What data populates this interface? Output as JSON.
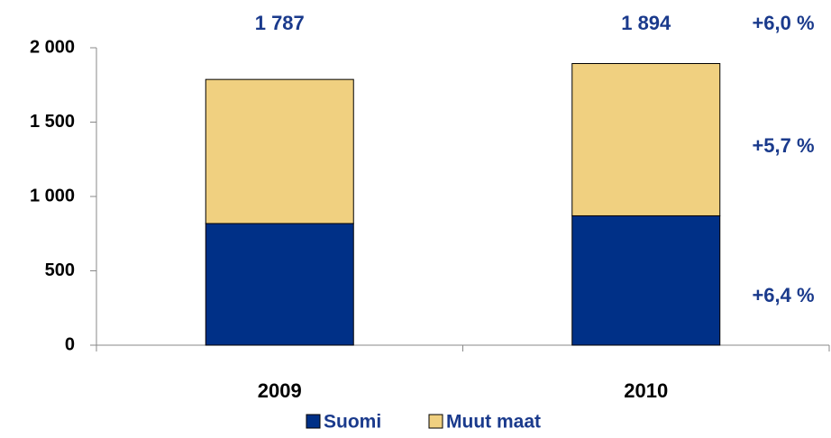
{
  "chart_data": {
    "type": "stacked_bar",
    "categories": [
      "2009",
      "2010"
    ],
    "series": [
      {
        "name": "Suomi",
        "color": "#003087",
        "values": [
          818,
          870
        ]
      },
      {
        "name": "Muut maat",
        "color": "#F0D080",
        "values": [
          969,
          1024
        ]
      }
    ],
    "ylim": [
      0,
      2000
    ],
    "yticks": [
      0,
      500,
      {
        "value": 1000,
        "label": "1 000"
      },
      {
        "value": 1500,
        "label": "1 500"
      },
      {
        "value": 2000,
        "label": "2 000"
      }
    ],
    "total_labels": [
      "1 787",
      "1 894"
    ],
    "change_labels": [
      "+6,0 %",
      "+5,7 %",
      "+6,4 %"
    ],
    "legend": "bottom"
  }
}
